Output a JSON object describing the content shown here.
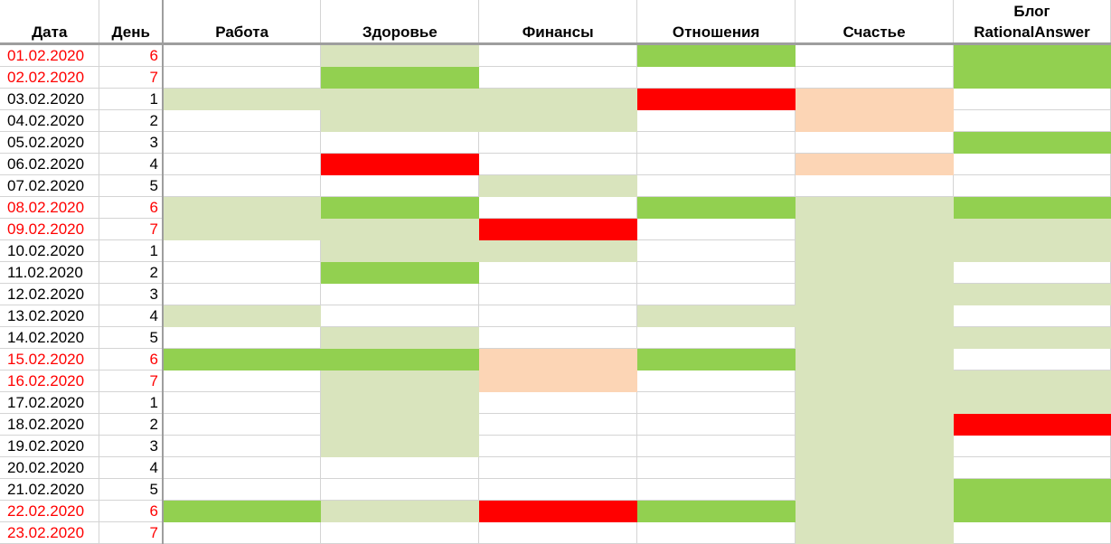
{
  "headers": {
    "date": "Дата",
    "day": "День",
    "categories": [
      "Работа",
      "Здоровье",
      "Финансы",
      "Отношения",
      "Счастье",
      "Блог RationalAnswer"
    ]
  },
  "colors": {
    "0": "#ffffff",
    "L": "#d9e4bd",
    "G": "#92d050",
    "R": "#ff0000",
    "P": "#fcd5b5",
    "weekend_text": "#ff0000"
  },
  "rows": [
    {
      "date": "01.02.2020",
      "day": "6",
      "cells": [
        "0",
        "L",
        "0",
        "G",
        "0",
        "G"
      ]
    },
    {
      "date": "02.02.2020",
      "day": "7",
      "cells": [
        "0",
        "G",
        "0",
        "0",
        "0",
        "G"
      ]
    },
    {
      "date": "03.02.2020",
      "day": "1",
      "cells": [
        "L",
        "L",
        "L",
        "R",
        "P",
        "0"
      ]
    },
    {
      "date": "04.02.2020",
      "day": "2",
      "cells": [
        "0",
        "L",
        "L",
        "0",
        "P",
        "0"
      ]
    },
    {
      "date": "05.02.2020",
      "day": "3",
      "cells": [
        "0",
        "0",
        "0",
        "0",
        "0",
        "G"
      ]
    },
    {
      "date": "06.02.2020",
      "day": "4",
      "cells": [
        "0",
        "R",
        "0",
        "0",
        "P",
        "0"
      ]
    },
    {
      "date": "07.02.2020",
      "day": "5",
      "cells": [
        "0",
        "0",
        "L",
        "0",
        "0",
        "0"
      ]
    },
    {
      "date": "08.02.2020",
      "day": "6",
      "cells": [
        "L",
        "G",
        "0",
        "G",
        "L",
        "G"
      ]
    },
    {
      "date": "09.02.2020",
      "day": "7",
      "cells": [
        "L",
        "L",
        "R",
        "0",
        "L",
        "L"
      ]
    },
    {
      "date": "10.02.2020",
      "day": "1",
      "cells": [
        "0",
        "L",
        "L",
        "0",
        "L",
        "L"
      ]
    },
    {
      "date": "11.02.2020",
      "day": "2",
      "cells": [
        "0",
        "G",
        "0",
        "0",
        "L",
        "0"
      ]
    },
    {
      "date": "12.02.2020",
      "day": "3",
      "cells": [
        "0",
        "0",
        "0",
        "0",
        "L",
        "L"
      ]
    },
    {
      "date": "13.02.2020",
      "day": "4",
      "cells": [
        "L",
        "0",
        "0",
        "L",
        "L",
        "0"
      ]
    },
    {
      "date": "14.02.2020",
      "day": "5",
      "cells": [
        "0",
        "L",
        "0",
        "0",
        "L",
        "L"
      ]
    },
    {
      "date": "15.02.2020",
      "day": "6",
      "cells": [
        "G",
        "G",
        "P",
        "G",
        "L",
        "0"
      ]
    },
    {
      "date": "16.02.2020",
      "day": "7",
      "cells": [
        "0",
        "L",
        "P",
        "0",
        "L",
        "L"
      ]
    },
    {
      "date": "17.02.2020",
      "day": "1",
      "cells": [
        "0",
        "L",
        "0",
        "0",
        "L",
        "L"
      ]
    },
    {
      "date": "18.02.2020",
      "day": "2",
      "cells": [
        "0",
        "L",
        "0",
        "0",
        "L",
        "R"
      ]
    },
    {
      "date": "19.02.2020",
      "day": "3",
      "cells": [
        "0",
        "L",
        "0",
        "0",
        "L",
        "0"
      ]
    },
    {
      "date": "20.02.2020",
      "day": "4",
      "cells": [
        "0",
        "0",
        "0",
        "0",
        "L",
        "0"
      ]
    },
    {
      "date": "21.02.2020",
      "day": "5",
      "cells": [
        "0",
        "0",
        "0",
        "0",
        "L",
        "G"
      ]
    },
    {
      "date": "22.02.2020",
      "day": "6",
      "cells": [
        "G",
        "L",
        "R",
        "G",
        "L",
        "G"
      ]
    },
    {
      "date": "23.02.2020",
      "day": "7",
      "cells": [
        "0",
        "0",
        "0",
        "0",
        "L",
        "0"
      ]
    }
  ]
}
